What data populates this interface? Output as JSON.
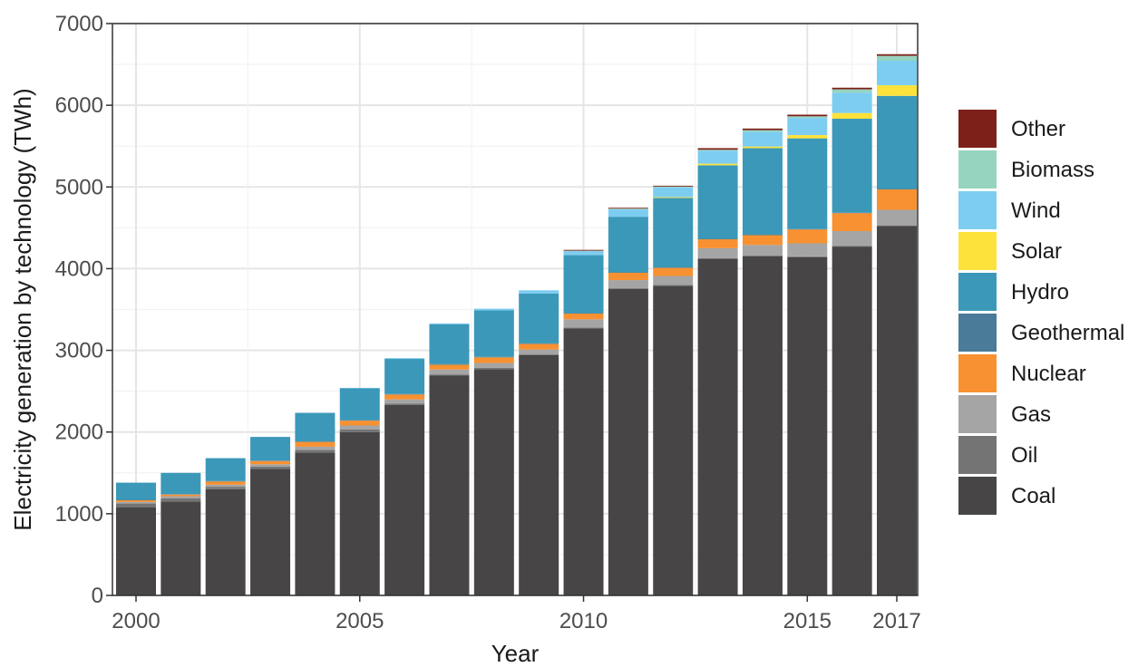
{
  "chart_data": {
    "type": "bar",
    "stacked": true,
    "xlabel": "Year",
    "ylabel": "Electricity generation by technology (TWh)",
    "ylim": [
      0,
      7000
    ],
    "y_ticks": [
      0,
      1000,
      2000,
      3000,
      4000,
      5000,
      6000,
      7000
    ],
    "x_tick_labels": [
      "2000",
      "2005",
      "2010",
      "2015",
      "2017"
    ],
    "grid": true,
    "legend_position": "right",
    "categories": [
      2000,
      2001,
      2002,
      2003,
      2004,
      2005,
      2006,
      2007,
      2008,
      2009,
      2010,
      2011,
      2012,
      2013,
      2014,
      2015,
      2016,
      2017
    ],
    "series": [
      {
        "name": "Coal",
        "color": "#474546",
        "values": [
          1080,
          1150,
          1300,
          1550,
          1750,
          2000,
          2330,
          2690,
          2770,
          2940,
          3270,
          3750,
          3790,
          4120,
          4150,
          4140,
          4270,
          4520
        ]
      },
      {
        "name": "Oil",
        "color": "#747474",
        "values": [
          45,
          40,
          30,
          25,
          30,
          30,
          20,
          15,
          15,
          10,
          10,
          10,
          10,
          10,
          10,
          10,
          10,
          10
        ]
      },
      {
        "name": "Gas",
        "color": "#a5a5a5",
        "values": [
          20,
          25,
          25,
          30,
          40,
          50,
          50,
          60,
          60,
          60,
          100,
          100,
          110,
          120,
          130,
          160,
          180,
          190
        ]
      },
      {
        "name": "Nuclear",
        "color": "#f89131",
        "values": [
          20,
          20,
          40,
          40,
          60,
          60,
          60,
          60,
          70,
          70,
          70,
          90,
          100,
          110,
          120,
          170,
          220,
          250
        ]
      },
      {
        "name": "Geothermal",
        "color": "#4a7b98",
        "values": [
          5,
          5,
          5,
          5,
          5,
          5,
          5,
          5,
          5,
          5,
          5,
          5,
          5,
          5,
          5,
          5,
          5,
          5
        ]
      },
      {
        "name": "Hydro",
        "color": "#3b98b8",
        "values": [
          210,
          260,
          280,
          290,
          350,
          390,
          430,
          490,
          570,
          610,
          710,
          680,
          850,
          900,
          1060,
          1110,
          1150,
          1140
        ]
      },
      {
        "name": "Solar",
        "color": "#fde23b",
        "values": [
          0,
          0,
          0,
          0,
          0,
          0,
          0,
          0,
          0,
          0,
          0,
          0,
          10,
          20,
          20,
          40,
          70,
          130
        ]
      },
      {
        "name": "Wind",
        "color": "#7dcdf1",
        "values": [
          0,
          0,
          0,
          0,
          0,
          5,
          10,
          10,
          20,
          40,
          50,
          90,
          120,
          160,
          180,
          210,
          250,
          300
        ]
      },
      {
        "name": "Biomass",
        "color": "#96d4bf",
        "values": [
          0,
          0,
          0,
          0,
          0,
          0,
          0,
          0,
          0,
          0,
          5,
          10,
          10,
          10,
          20,
          20,
          40,
          60
        ]
      },
      {
        "name": "Other",
        "color": "#7d2019",
        "values": [
          0,
          0,
          0,
          0,
          0,
          0,
          0,
          0,
          0,
          0,
          10,
          10,
          10,
          20,
          20,
          20,
          20,
          20
        ]
      }
    ],
    "legend_order": [
      "Other",
      "Biomass",
      "Wind",
      "Solar",
      "Hydro",
      "Geothermal",
      "Nuclear",
      "Gas",
      "Oil",
      "Coal"
    ]
  }
}
